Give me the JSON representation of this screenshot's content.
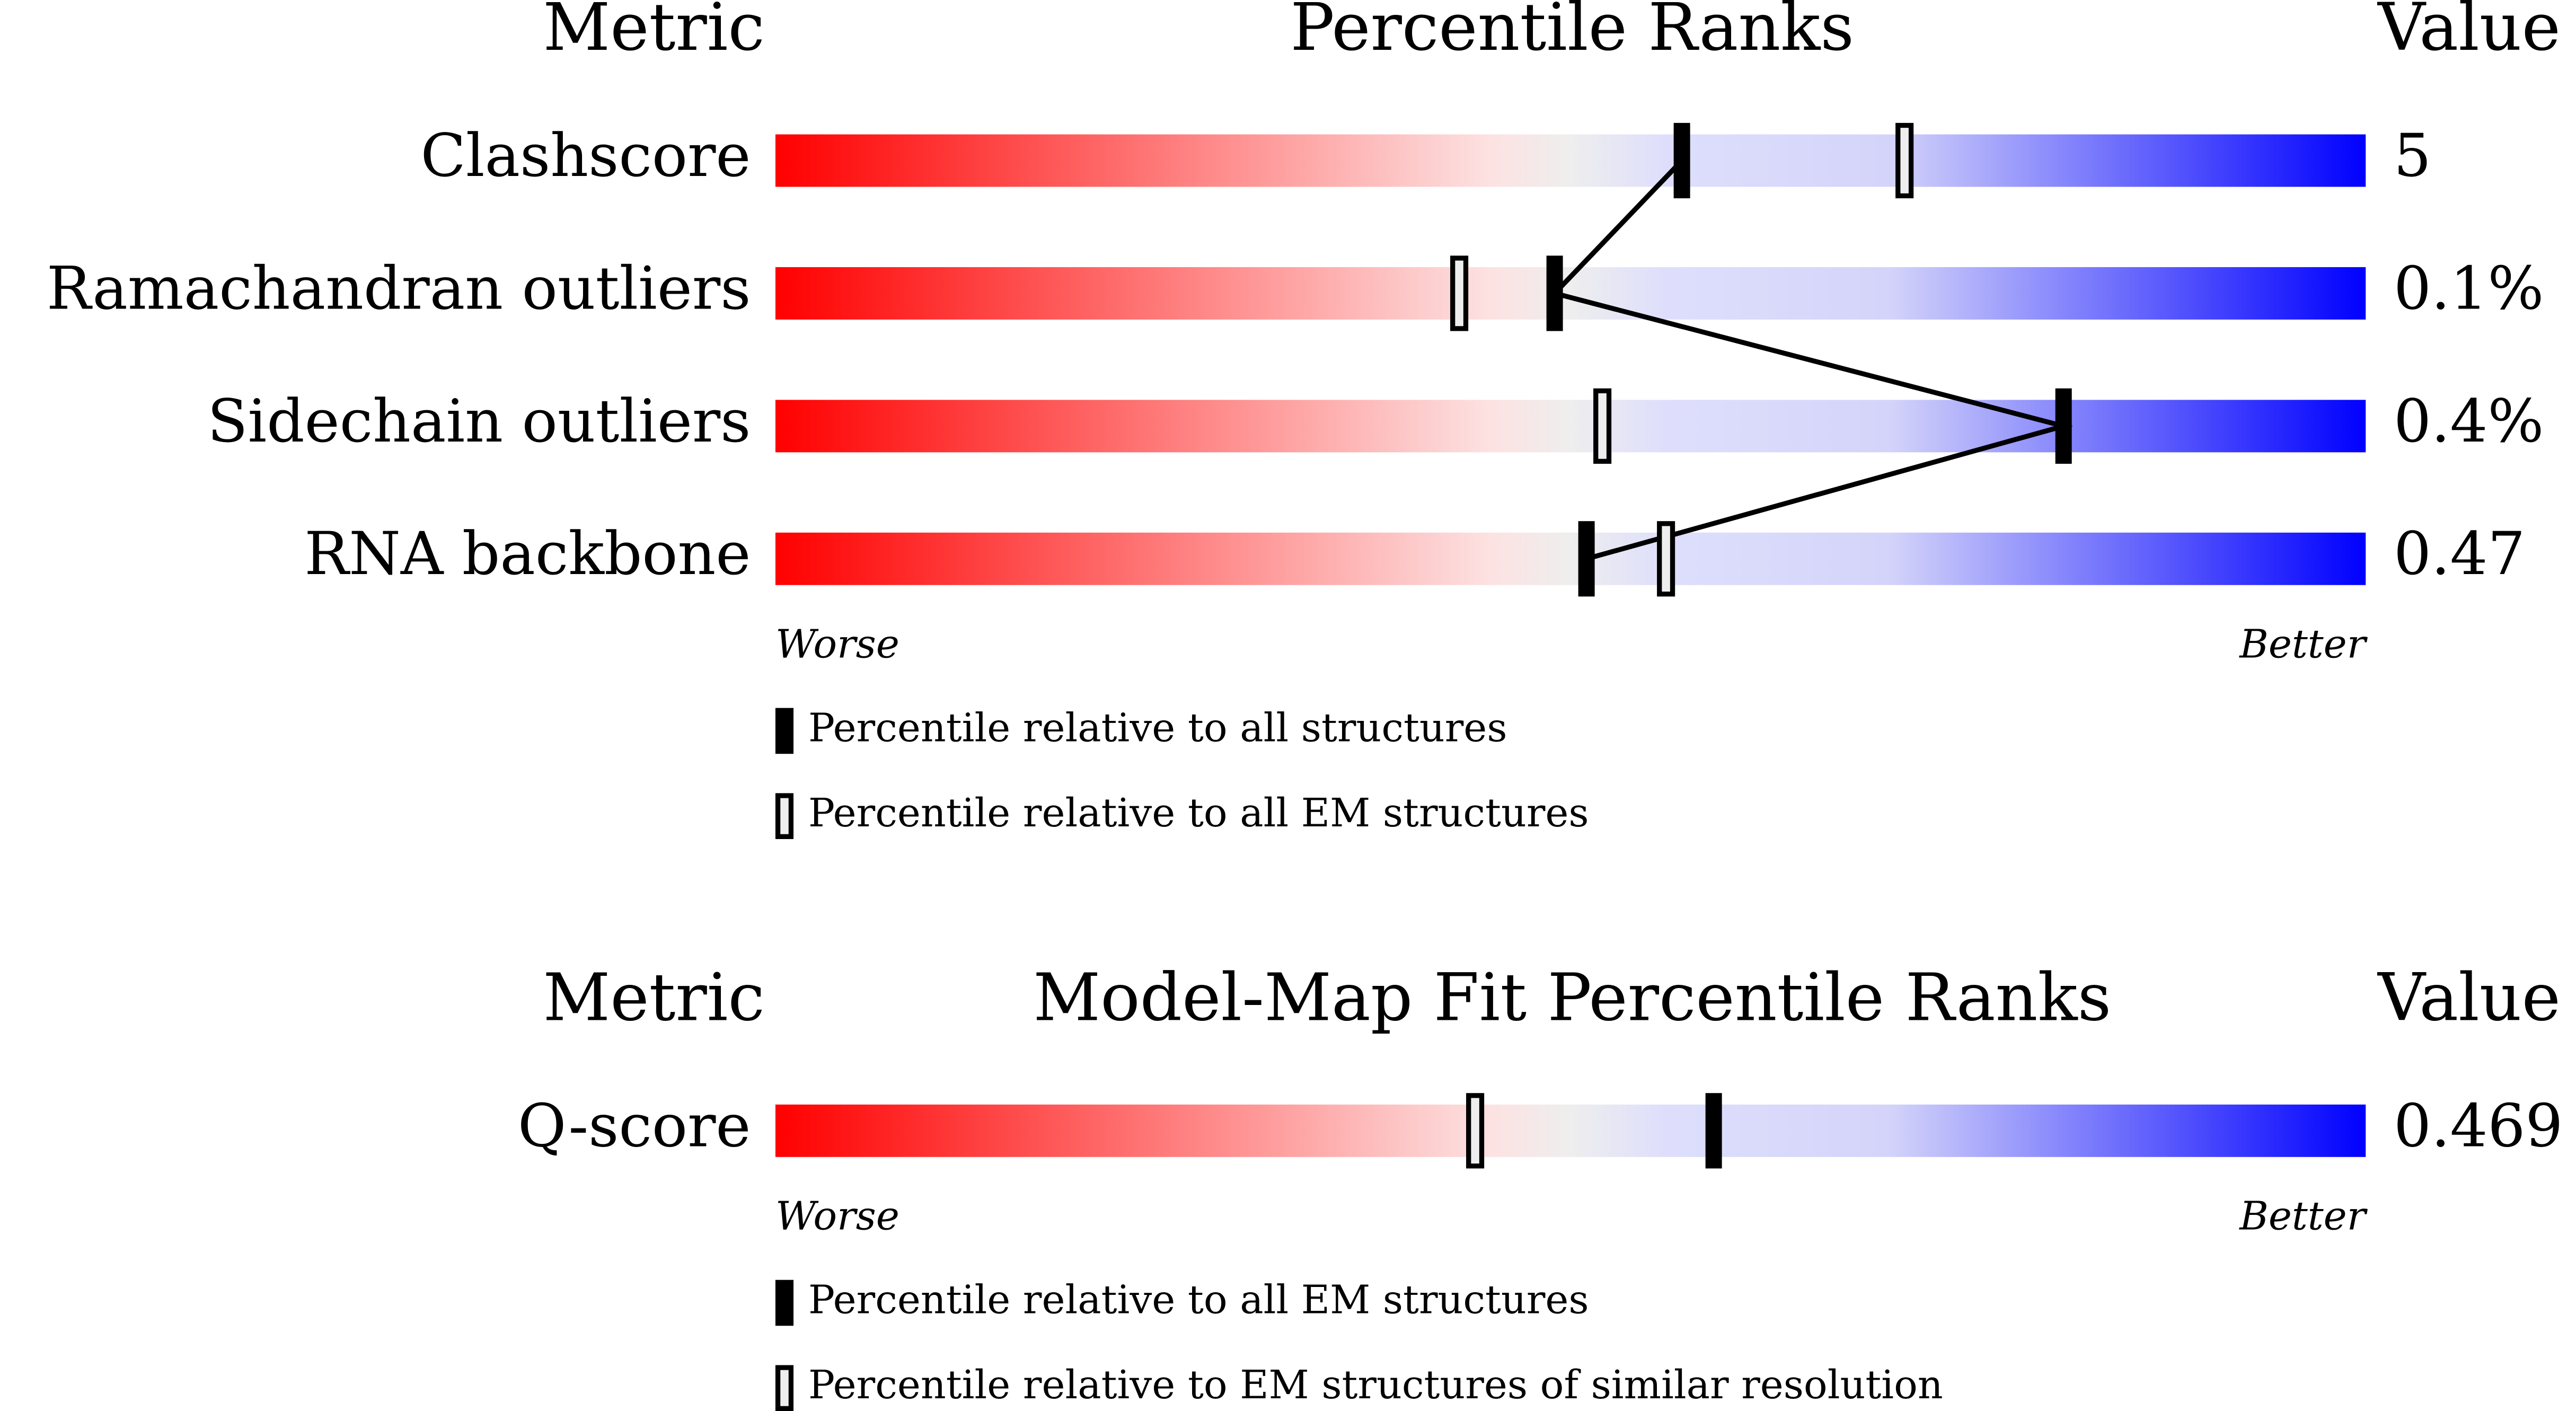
{
  "chart_data": [
    {
      "type": "percentile",
      "title": "Percentile Ranks",
      "metric_header": "Metric",
      "value_header": "Value",
      "categories": [
        "Clashscore",
        "Ramachandran outliers",
        "Sidechain outliers",
        "RNA backbone"
      ],
      "metric_values": [
        "5",
        "0.1%",
        "0.4%",
        "0.47"
      ],
      "xlim": [
        0,
        100
      ],
      "worse_label": "Worse",
      "better_label": "Better",
      "series": [
        {
          "name": "Percentile relative to all structures",
          "style": "filled",
          "values": [
            57,
            49,
            81,
            51
          ]
        },
        {
          "name": "Percentile relative to all EM structures",
          "style": "open",
          "values": [
            71,
            43,
            52,
            56
          ]
        }
      ]
    },
    {
      "type": "percentile",
      "title": "Model-Map Fit Percentile Ranks",
      "metric_header": "Metric",
      "value_header": "Value",
      "categories": [
        "Q-score"
      ],
      "metric_values": [
        "0.469"
      ],
      "xlim": [
        0,
        100
      ],
      "worse_label": "Worse",
      "better_label": "Better",
      "series": [
        {
          "name": "Percentile relative to all EM structures",
          "style": "filled",
          "values": [
            59
          ]
        },
        {
          "name": "Percentile relative to EM structures of similar resolution",
          "style": "open",
          "values": [
            44
          ]
        }
      ]
    }
  ]
}
